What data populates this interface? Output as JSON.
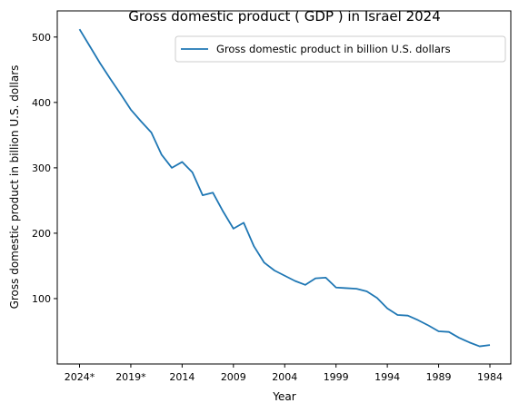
{
  "chart_data": {
    "type": "line",
    "title": "Gross domestic product ( GDP ) in Israel 2024",
    "xlabel": "Year",
    "ylabel": "Gross domestic product in billion U.S. dollars",
    "x_ticks": [
      "2024*",
      "2019*",
      "2014",
      "2009",
      "2004",
      "1999",
      "1994",
      "1989",
      "1984"
    ],
    "y_ticks": [
      100,
      200,
      300,
      400,
      500
    ],
    "ylim": [
      0,
      540
    ],
    "legend_position": "top-right",
    "grid": false,
    "series": [
      {
        "name": "Gross domestic product in billion U.S. dollars",
        "color": "#1f77b4",
        "x": [
          "2024*",
          "2023*",
          "2022*",
          "2021*",
          "2020*",
          "2019*",
          "2018*",
          "2017",
          "2016",
          "2015",
          "2014",
          "2013",
          "2012",
          "2011",
          "2010",
          "2009",
          "2008",
          "2007",
          "2006",
          "2005",
          "2004",
          "2003",
          "2002",
          "2001",
          "2000",
          "1999",
          "1998",
          "1997",
          "1996",
          "1995",
          "1994",
          "1993",
          "1992",
          "1991",
          "1990",
          "1989",
          "1988",
          "1987",
          "1986",
          "1985",
          "1984"
        ],
        "values": [
          512,
          486,
          460,
          436,
          413,
          389,
          371,
          354,
          320,
          300,
          309,
          293,
          258,
          262,
          233,
          207,
          216,
          180,
          155,
          143,
          135,
          127,
          121,
          131,
          132,
          117,
          116,
          115,
          111,
          101,
          85,
          75,
          74,
          67,
          59,
          50,
          49,
          40,
          33,
          27,
          29
        ]
      }
    ]
  }
}
